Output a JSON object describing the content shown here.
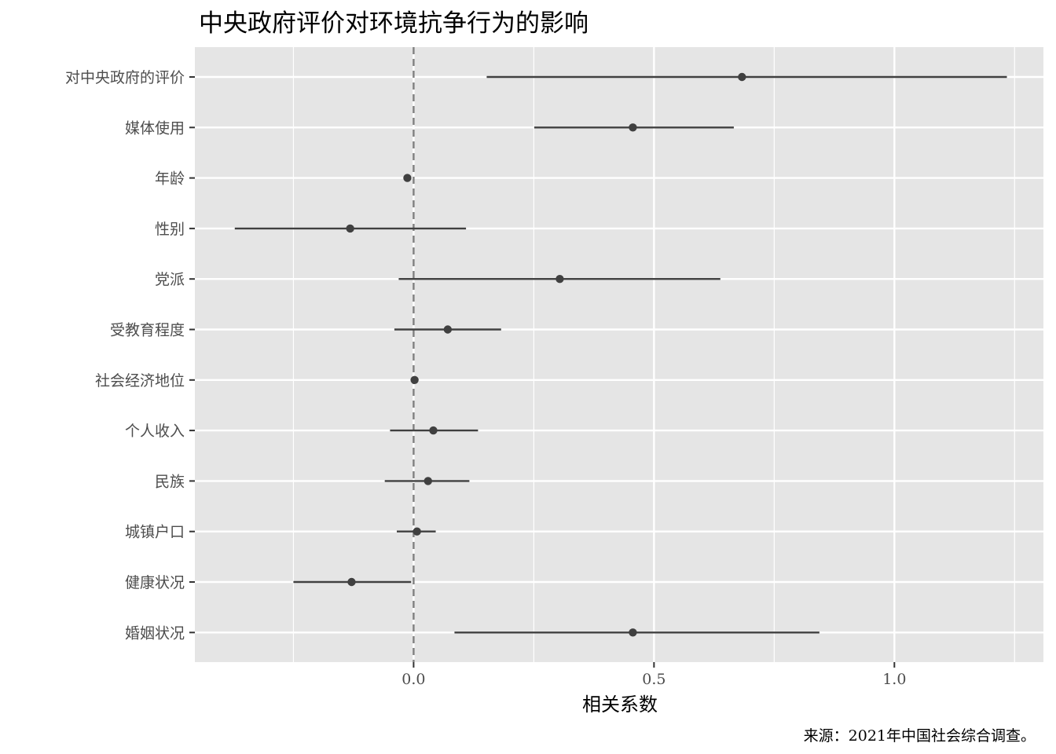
{
  "chart_data": {
    "type": "scatter",
    "subtype": "coefficient-plot",
    "title": "中央政府评价对环境抗争行为的影响",
    "xlabel": "相关系数",
    "ylabel": "",
    "caption": "来源：2021年中国社会综合调查。",
    "xlim": [
      -0.455,
      1.31
    ],
    "xticks": [
      0.0,
      0.5,
      1.0
    ],
    "xtick_labels": [
      "0.0",
      "0.5",
      "1.0"
    ],
    "reference_line": 0,
    "grid": true,
    "categories": [
      "对中央政府的评价",
      "媒体使用",
      "年龄",
      "性别",
      "党派",
      "受教育程度",
      "社会经济地位",
      "个人收入",
      "民族",
      "城镇户口",
      "健康状况",
      "婚姻状况"
    ],
    "series": [
      {
        "estimate": [
          0.683,
          0.456,
          -0.013,
          -0.132,
          0.304,
          0.071,
          0.002,
          0.041,
          0.03,
          0.007,
          -0.129,
          0.456
        ],
        "lower": [
          0.152,
          0.251,
          -0.013,
          -0.372,
          -0.031,
          -0.04,
          0.002,
          -0.049,
          -0.06,
          -0.035,
          -0.25,
          0.085
        ],
        "upper": [
          1.234,
          0.666,
          -0.013,
          0.109,
          0.638,
          0.182,
          0.002,
          0.134,
          0.116,
          0.046,
          -0.005,
          0.844
        ]
      }
    ],
    "colors": {
      "panel": "#e5e5e5",
      "grid": "#ffffff",
      "point": "#404040",
      "refline": "#7f7f7f"
    }
  }
}
